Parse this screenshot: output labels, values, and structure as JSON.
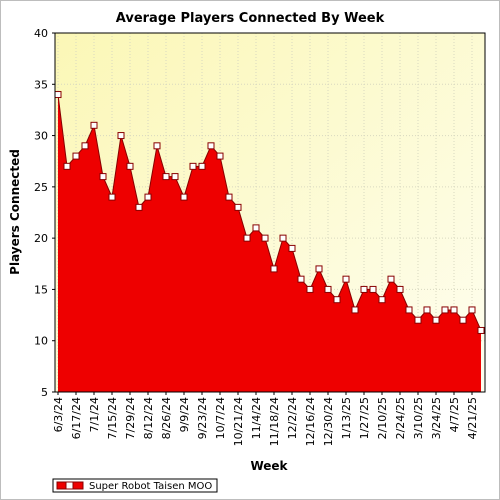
{
  "chart_data": {
    "type": "area",
    "title": "Average Players Connected By Week",
    "xlabel": "Week",
    "ylabel": "Players Connected",
    "ylim": [
      5,
      40
    ],
    "yticks": [
      5,
      10,
      15,
      20,
      25,
      30,
      35,
      40
    ],
    "xtick_labels": [
      "6/3/24",
      "6/17/24",
      "7/1/24",
      "7/15/24",
      "7/29/24",
      "8/12/24",
      "8/26/24",
      "9/9/24",
      "9/23/24",
      "10/7/24",
      "10/21/24",
      "11/4/24",
      "11/18/24",
      "12/2/24",
      "12/16/24",
      "12/30/24",
      "1/13/25",
      "1/27/25",
      "2/10/25",
      "2/24/25",
      "3/10/25",
      "3/24/25",
      "4/7/25",
      "4/21/25"
    ],
    "grid": true,
    "legend_position": "bottom-left",
    "colors": {
      "fill": "#ee0000",
      "line": "#880000",
      "marker_fill": "#ffffff",
      "marker_stroke": "#880000",
      "plot_background": "#fdfde2"
    },
    "series": [
      {
        "name": "Super Robot Taisen MOO",
        "values": [
          34,
          27,
          28,
          29,
          31,
          26,
          24,
          30,
          27,
          23,
          24,
          29,
          26,
          26,
          24,
          27,
          27,
          29,
          28,
          24,
          23,
          20,
          21,
          20,
          17,
          20,
          19,
          16,
          15,
          17,
          15,
          14,
          16,
          13,
          15,
          15,
          14,
          16,
          15,
          13,
          12,
          13,
          12,
          13,
          13,
          12,
          13,
          11
        ]
      }
    ]
  }
}
